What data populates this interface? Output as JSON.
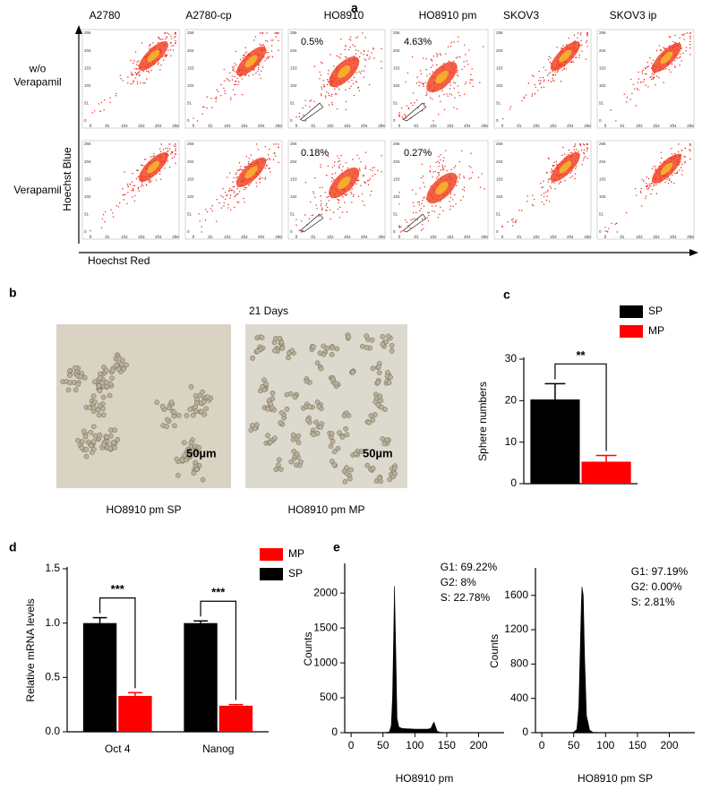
{
  "panel_a": {
    "label": "a",
    "columns": [
      "A2780",
      "A2780-cp",
      "HO8910",
      "HO8910 pm",
      "SKOV3",
      "SKOV3 ip"
    ],
    "rows": [
      [
        "w/o",
        "Verapamil"
      ],
      [
        "Verapamil"
      ]
    ],
    "gate_percentages": [
      [
        null,
        null,
        "0.5%",
        "4.63%",
        null,
        null
      ],
      [
        null,
        null,
        "0.18%",
        "0.27%",
        null,
        null
      ]
    ],
    "ylabel": "Hoechst Blue",
    "xlabel": "Hoechst Red",
    "ticks": [
      0,
      51,
      102,
      153,
      204,
      256
    ]
  },
  "panel_b": {
    "label": "b",
    "title": "21 Days",
    "images": [
      {
        "caption": "HO8910 pm SP",
        "scale_bar": "50µm"
      },
      {
        "caption": "HO8910 pm MP",
        "scale_bar": "50µm"
      }
    ]
  },
  "chart_data": [
    {
      "type": "bar",
      "label": "c",
      "ylabel": "Sphere numbers",
      "categories": [
        null
      ],
      "series": [
        {
          "name": "SP",
          "color": "#000000",
          "values": [
            20.3
          ],
          "errors": [
            3.8
          ]
        },
        {
          "name": "MP",
          "color": "#ff0000",
          "values": [
            5.3
          ],
          "errors": [
            1.5
          ]
        }
      ],
      "ylim": [
        0,
        30
      ],
      "yticks": [
        0,
        10,
        20,
        30
      ],
      "significance": [
        "**"
      ]
    },
    {
      "type": "bar",
      "label": "d",
      "ylabel": "Relative mRNA levels",
      "categories": [
        "Oct 4",
        "Nanog"
      ],
      "series": [
        {
          "name": "SP",
          "color": "#000000",
          "values": [
            1.0,
            1.0
          ],
          "errors": [
            0.05,
            0.02
          ]
        },
        {
          "name": "MP",
          "color": "#ff0000",
          "values": [
            0.33,
            0.24
          ],
          "errors": [
            0.03,
            0.01
          ]
        }
      ],
      "legend_reversed": true,
      "ylim": [
        0,
        1.5
      ],
      "yticks": [
        {
          "value": 0,
          "label": "0.0"
        },
        0.5,
        {
          "value": 1,
          "label": "1.0"
        },
        1.5
      ],
      "significance": [
        "***",
        "***"
      ]
    },
    {
      "type": "area",
      "label": "e",
      "xlabel": "HO8910 pm",
      "ylabel": "Counts",
      "annotations": [
        "G1: 69.22%",
        "G2: 8%",
        "S: 22.78%"
      ],
      "color": "#000000",
      "x": [
        0,
        50,
        60,
        63,
        65,
        67,
        68,
        70,
        72,
        75,
        80,
        90,
        100,
        110,
        120,
        125,
        128,
        130,
        132,
        135,
        140,
        150,
        230
      ],
      "values": [
        0,
        0,
        10,
        100,
        500,
        1500,
        2100,
        1200,
        200,
        80,
        60,
        55,
        50,
        50,
        50,
        60,
        120,
        150,
        100,
        20,
        5,
        0,
        0
      ],
      "xlim": [
        -10,
        240
      ],
      "xticks": [
        0,
        50,
        100,
        150,
        200
      ],
      "ylim": [
        0,
        2400
      ],
      "yticks": [
        0,
        500,
        1000,
        1500,
        2000
      ]
    },
    {
      "type": "area",
      "xlabel": "HO8910 pm SP",
      "ylabel": "Counts",
      "annotations": [
        "G1: 97.19%",
        "G2: 0.00%",
        "S: 2.81%"
      ],
      "color": "#000000",
      "x": [
        0,
        40,
        50,
        55,
        58,
        60,
        62,
        63,
        65,
        67,
        70,
        75,
        80,
        100,
        230
      ],
      "values": [
        0,
        0,
        5,
        40,
        300,
        900,
        1500,
        1700,
        1600,
        900,
        200,
        30,
        5,
        0,
        0
      ],
      "xlim": [
        -10,
        240
      ],
      "xticks": [
        0,
        50,
        100,
        150,
        200
      ],
      "ylim": [
        0,
        1900
      ],
      "yticks": [
        0,
        400,
        800,
        1200,
        1600
      ]
    }
  ]
}
